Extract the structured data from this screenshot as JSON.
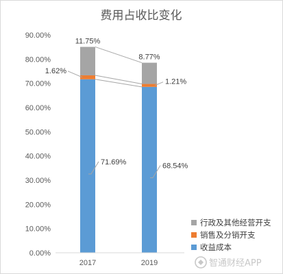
{
  "chart_data": {
    "type": "bar",
    "stacked": true,
    "title": "费用占收比变化",
    "categories": [
      "2017",
      "2019"
    ],
    "series": [
      {
        "name": "收益成本",
        "color": "#5b9bd5",
        "values": [
          71.69,
          68.54
        ],
        "labels": [
          "71.69%",
          "68.54%"
        ]
      },
      {
        "name": "销售及分销开支",
        "color": "#ed7d31",
        "values": [
          1.62,
          1.21
        ],
        "labels": [
          "1.62%",
          "1.21%"
        ]
      },
      {
        "name": "行政及其他经营开支",
        "color": "#a5a5a5",
        "values": [
          11.75,
          8.77
        ],
        "labels": [
          "11.75%",
          "8.77%"
        ]
      }
    ],
    "ylim": [
      0,
      90
    ],
    "yticks": [
      "0.00%",
      "10.00%",
      "20.00%",
      "30.00%",
      "40.00%",
      "50.00%",
      "60.00%",
      "70.00%",
      "80.00%",
      "90.00%"
    ],
    "legend_position": "bottom-right",
    "grid": false,
    "series_lines": true
  },
  "watermark": "智通财经APP"
}
